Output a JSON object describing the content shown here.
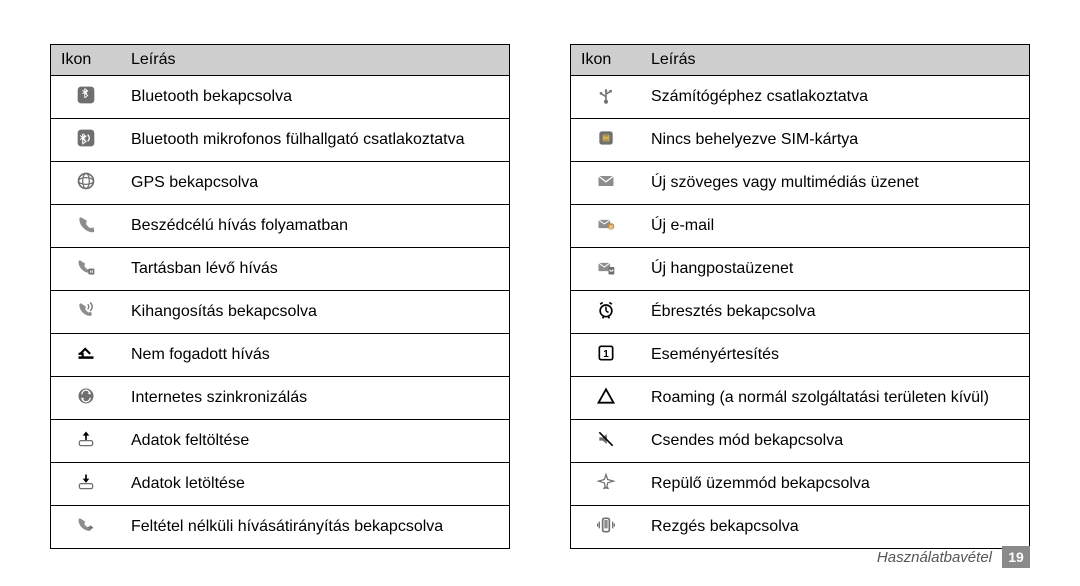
{
  "headers": {
    "icon": "Ikon",
    "desc": "Leírás"
  },
  "footer": {
    "label": "Használatbavétel",
    "page": "19"
  },
  "left": [
    {
      "icon": "bluetooth",
      "desc": "Bluetooth bekapcsolva"
    },
    {
      "icon": "bt-headset",
      "desc": "Bluetooth mikrofonos fülhallgató csatlakoztatva"
    },
    {
      "icon": "gps",
      "desc": "GPS bekapcsolva"
    },
    {
      "icon": "call",
      "desc": "Beszédcélú hívás folyamatban"
    },
    {
      "icon": "call-hold",
      "desc": "Tartásban lévő hívás"
    },
    {
      "icon": "speaker",
      "desc": "Kihangosítás bekapcsolva"
    },
    {
      "icon": "missed",
      "desc": "Nem fogadott hívás"
    },
    {
      "icon": "sync",
      "desc": "Internetes szinkronizálás"
    },
    {
      "icon": "upload",
      "desc": "Adatok feltöltése"
    },
    {
      "icon": "download",
      "desc": "Adatok letöltése"
    },
    {
      "icon": "forward",
      "desc": "Feltétel nélküli hívásátirányítás bekapcsolva"
    }
  ],
  "right": [
    {
      "icon": "usb",
      "desc": "Számítógéphez csatlakoztatva"
    },
    {
      "icon": "nosim",
      "desc": "Nincs behelyezve SIM-kártya"
    },
    {
      "icon": "msg",
      "desc": "Új szöveges vagy multimédiás üzenet"
    },
    {
      "icon": "email",
      "desc": "Új e-mail"
    },
    {
      "icon": "voicemail",
      "desc": "Új hangpostaüzenet"
    },
    {
      "icon": "alarm",
      "desc": "Ébresztés bekapcsolva"
    },
    {
      "icon": "event",
      "desc": "Eseményértesítés"
    },
    {
      "icon": "roaming",
      "desc": "Roaming (a normál szolgáltatási területen kívül)"
    },
    {
      "icon": "silent",
      "desc": "Csendes mód bekapcsolva"
    },
    {
      "icon": "plane",
      "desc": "Repülő üzemmód bekapcsolva"
    },
    {
      "icon": "vibrate",
      "desc": "Rezgés bekapcsolva"
    }
  ],
  "icon_style": {
    "fill": "#6f6f6f",
    "fill_light": "#8d8d8d",
    "stroke": "#000000",
    "bg": "#ffffff"
  }
}
